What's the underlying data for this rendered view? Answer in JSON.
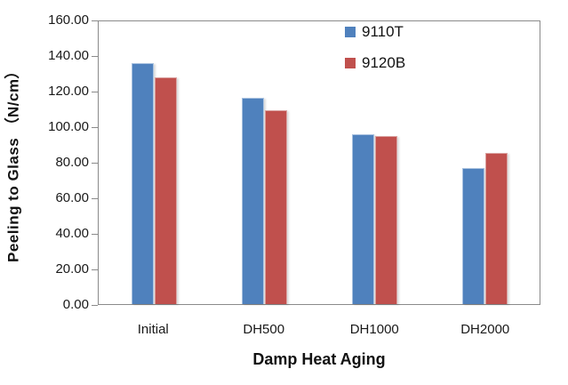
{
  "chart_data": {
    "type": "bar",
    "title": "",
    "categories": [
      "Initial",
      "DH500",
      "DH1000",
      "DH2000"
    ],
    "series": [
      {
        "name": "9110T",
        "color": "#4F81BD",
        "edge_color": "#A9C2E0",
        "values": [
          136.5,
          116.5,
          96.0,
          77.0
        ]
      },
      {
        "name": "9120B",
        "color": "#C0504D",
        "edge_color": "#DBA2A0",
        "values": [
          128.5,
          109.5,
          95.0,
          85.5
        ]
      }
    ],
    "xlabel": "Damp Heat Aging",
    "ylabel": "Peeling to Glass （N/cm）",
    "ylim": [
      0,
      160
    ],
    "ytick_step": 20,
    "ytick_labels": [
      "160.00",
      "140.00",
      "120.00",
      "100.00",
      "80.00",
      "60.00",
      "40.00",
      "20.00",
      "0.00"
    ],
    "grid": false,
    "legend_position": "inside-top-right",
    "axis_color": "#8a8a8a",
    "background_color": "#ffffff"
  }
}
